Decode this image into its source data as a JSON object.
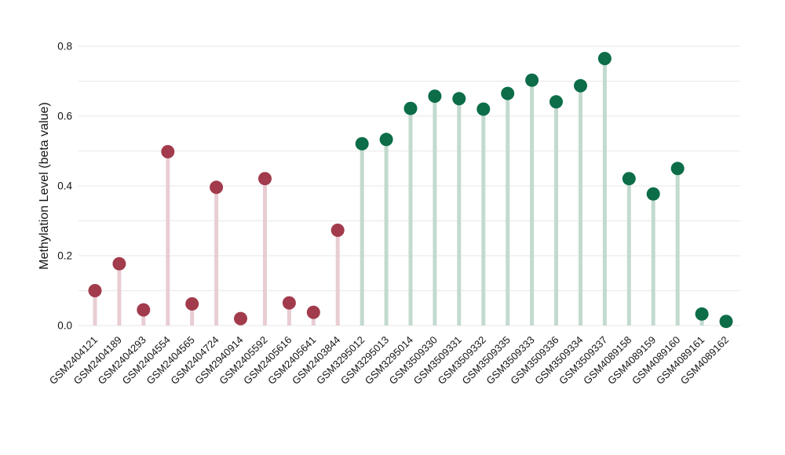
{
  "chart_data": {
    "type": "scatter",
    "style": "lollipop-stem",
    "title": "",
    "xlabel": "",
    "ylabel": "Methylation Level (beta value)",
    "ylim": [
      0,
      0.8
    ],
    "yticks": [
      "0.0",
      "0.2",
      "0.4",
      "0.6",
      "0.8"
    ],
    "grid": {
      "visible": true,
      "step": 0.1,
      "color": "#ececec"
    },
    "legend_position": "none",
    "background_color": "#ffffff",
    "groups": {
      "maroon": {
        "dot_color": "#A23B4C",
        "stem_color": "#E8CDD3"
      },
      "green": {
        "dot_color": "#0C6D48",
        "stem_color": "#C3DACF"
      }
    },
    "samples": [
      {
        "id": "GSM2404121",
        "value": 0.1,
        "group": "maroon"
      },
      {
        "id": "GSM2404189",
        "value": 0.177,
        "group": "maroon"
      },
      {
        "id": "GSM2404293",
        "value": 0.045,
        "group": "maroon"
      },
      {
        "id": "GSM2404554",
        "value": 0.498,
        "group": "maroon"
      },
      {
        "id": "GSM2404565",
        "value": 0.062,
        "group": "maroon"
      },
      {
        "id": "GSM2404724",
        "value": 0.396,
        "group": "maroon"
      },
      {
        "id": "GSM2940914",
        "value": 0.02,
        "group": "maroon"
      },
      {
        "id": "GSM2405592",
        "value": 0.421,
        "group": "maroon"
      },
      {
        "id": "GSM2405616",
        "value": 0.065,
        "group": "maroon"
      },
      {
        "id": "GSM2405641",
        "value": 0.038,
        "group": "maroon"
      },
      {
        "id": "GSM2403844",
        "value": 0.273,
        "group": "maroon"
      },
      {
        "id": "GSM3295012",
        "value": 0.521,
        "group": "green"
      },
      {
        "id": "GSM3295013",
        "value": 0.533,
        "group": "green"
      },
      {
        "id": "GSM3295014",
        "value": 0.622,
        "group": "green"
      },
      {
        "id": "GSM3509330",
        "value": 0.657,
        "group": "green"
      },
      {
        "id": "GSM3509331",
        "value": 0.65,
        "group": "green"
      },
      {
        "id": "GSM3509332",
        "value": 0.62,
        "group": "green"
      },
      {
        "id": "GSM3509335",
        "value": 0.665,
        "group": "green"
      },
      {
        "id": "GSM3509333",
        "value": 0.703,
        "group": "green"
      },
      {
        "id": "GSM3509336",
        "value": 0.641,
        "group": "green"
      },
      {
        "id": "GSM3509334",
        "value": 0.687,
        "group": "green"
      },
      {
        "id": "GSM3509337",
        "value": 0.765,
        "group": "green"
      },
      {
        "id": "GSM4089158",
        "value": 0.421,
        "group": "green"
      },
      {
        "id": "GSM4089159",
        "value": 0.377,
        "group": "green"
      },
      {
        "id": "GSM4089160",
        "value": 0.45,
        "group": "green"
      },
      {
        "id": "GSM4089161",
        "value": 0.033,
        "group": "green"
      },
      {
        "id": "GSM4089162",
        "value": 0.012,
        "group": "green"
      }
    ]
  }
}
